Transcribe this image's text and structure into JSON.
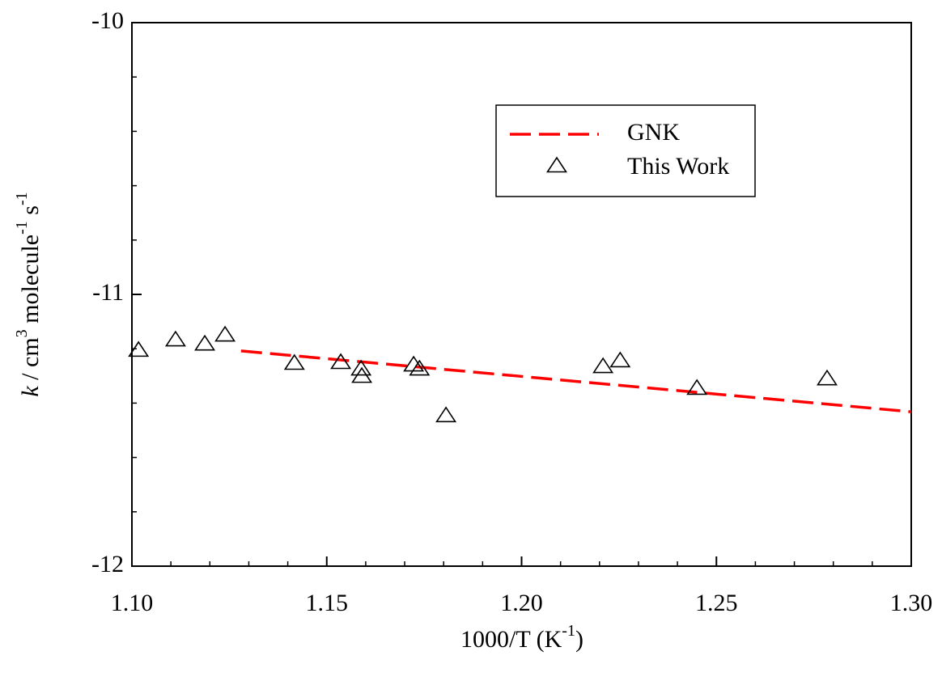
{
  "chart_data": {
    "type": "line-scatter",
    "xlabel": [
      "1000/T (K",
      "-1",
      ")"
    ],
    "ylabel": [
      "k",
      " / cm",
      "3",
      " molecule",
      "-1",
      " s",
      "-1"
    ],
    "xlim": [
      1.1,
      1.3
    ],
    "ylim": [
      -12,
      -10
    ],
    "xticks": [
      {
        "value": 1.1,
        "label": "1.10"
      },
      {
        "value": 1.15,
        "label": "1.15"
      },
      {
        "value": 1.2,
        "label": "1.20"
      },
      {
        "value": 1.25,
        "label": "1.25"
      },
      {
        "value": 1.3,
        "label": "1.30"
      }
    ],
    "yticks": [
      -10,
      -11,
      -12
    ],
    "legend": "upper right",
    "series": [
      {
        "name": "GNK",
        "kind": "line",
        "color": "#ff0000",
        "x": [
          1.128,
          1.3
        ],
        "values": [
          -11.208,
          -11.432
        ]
      },
      {
        "name": "This Work",
        "kind": "scatter",
        "color": "#000000",
        "x": [
          1.1017,
          1.1112,
          1.1187,
          1.1239,
          1.1417,
          1.1536,
          1.1588,
          1.159,
          1.1723,
          1.1738,
          1.1806,
          1.2209,
          1.2253,
          1.245,
          1.2784
        ],
        "values": [
          -11.205,
          -11.167,
          -11.182,
          -11.149,
          -11.253,
          -11.25,
          -11.274,
          -11.301,
          -11.259,
          -11.274,
          -11.446,
          -11.265,
          -11.244,
          -11.345,
          -11.31
        ]
      }
    ]
  }
}
